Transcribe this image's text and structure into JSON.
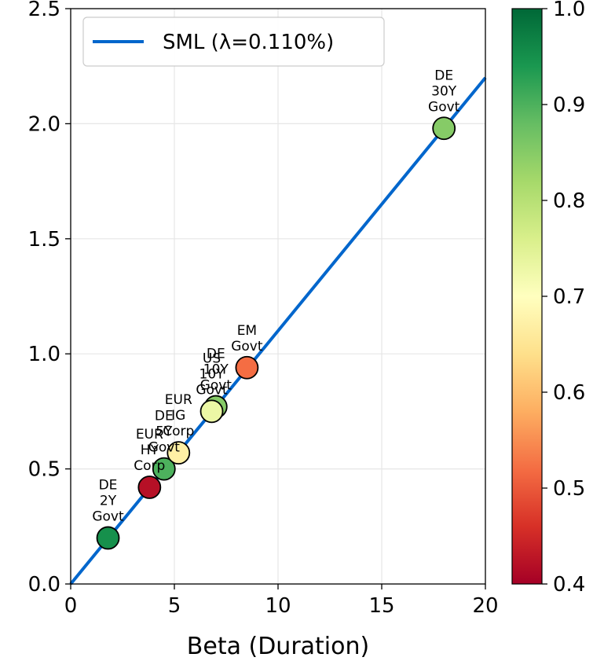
{
  "chart_data": {
    "type": "scatter",
    "xlabel": "Beta (Duration)",
    "xlim": [
      0,
      20
    ],
    "ylim": [
      0,
      2.5
    ],
    "x_ticks": [
      "0",
      "5",
      "10",
      "15",
      "20"
    ],
    "y_ticks": [
      "0.0",
      "0.5",
      "1.0",
      "1.5",
      "2.0",
      "2.5"
    ],
    "grid": true,
    "legend": {
      "position": "top-left",
      "label": "SML (λ=0.110%)"
    },
    "sml_line": {
      "slope_pct": 0.11,
      "x": [
        0,
        20
      ],
      "y": [
        0,
        2.2
      ],
      "color": "#0066cc"
    },
    "colorbar": {
      "range": [
        0.4,
        1.0
      ],
      "ticks": [
        "0.4",
        "0.5",
        "0.6",
        "0.7",
        "0.8",
        "0.9",
        "1.0"
      ],
      "colormap": "RdYlGn",
      "stops": [
        "#a50026",
        "#d73027",
        "#f46d43",
        "#fdae61",
        "#fee08b",
        "#ffffbf",
        "#d9ef8b",
        "#a6d96a",
        "#66bd63",
        "#1a9850",
        "#006837"
      ]
    },
    "points": [
      {
        "label": "DE 2Y Govt",
        "label_lines": [
          "DE",
          "2Y",
          "Govt"
        ],
        "x": 1.8,
        "y": 0.2,
        "c": 0.95
      },
      {
        "label": "EUR HY Corp",
        "label_lines": [
          "EUR",
          "HY",
          "Corp"
        ],
        "x": 3.8,
        "y": 0.42,
        "c": 0.42
      },
      {
        "label": "DE 5Y Govt",
        "label_lines": [
          "DE",
          "5Y",
          "Govt"
        ],
        "x": 4.5,
        "y": 0.5,
        "c": 0.9
      },
      {
        "label": "EUR IG Corp",
        "label_lines": [
          "EUR",
          "IG",
          "Corp"
        ],
        "x": 5.2,
        "y": 0.57,
        "c": 0.67
      },
      {
        "label": "DE 10Y Govt",
        "label_lines": [
          "DE",
          "10Y",
          "Govt"
        ],
        "x": 7.0,
        "y": 0.77,
        "c": 0.85
      },
      {
        "label": "US 10Y Govt",
        "label_lines": [
          "US",
          "10Y",
          "Govt"
        ],
        "x": 6.8,
        "y": 0.75,
        "c": 0.73
      },
      {
        "label": "EM Govt",
        "label_lines": [
          "EM",
          "Govt"
        ],
        "x": 8.5,
        "y": 0.94,
        "c": 0.52
      },
      {
        "label": "DE 30Y Govt",
        "label_lines": [
          "DE",
          "30Y",
          "Govt"
        ],
        "x": 18.0,
        "y": 1.98,
        "c": 0.85
      }
    ]
  }
}
